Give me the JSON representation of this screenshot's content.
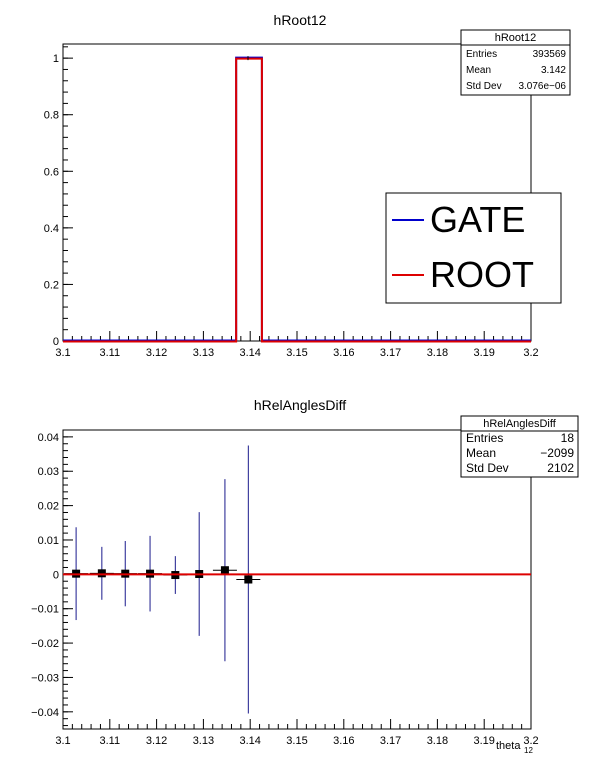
{
  "chart_data": [
    {
      "type": "histogram",
      "title": "hRoot12",
      "xlabel": "",
      "ylabel": "",
      "xlim": [
        3.1,
        3.2
      ],
      "ylim": [
        0,
        1.05
      ],
      "x_ticks": [
        "3.1",
        "3.11",
        "3.12",
        "3.13",
        "3.14",
        "3.15",
        "3.16",
        "3.17",
        "3.18",
        "3.19",
        "3.2"
      ],
      "y_ticks": [
        "0",
        "0.2",
        "0.4",
        "0.6",
        "0.8",
        "1"
      ],
      "series": [
        {
          "name": "GATE",
          "color": "#0000cc",
          "bins": [
            {
              "x0": 3.1,
              "x1": 3.137,
              "y": 0
            },
            {
              "x0": 3.137,
              "x1": 3.1425,
              "y": 1
            },
            {
              "x0": 3.1425,
              "x1": 3.2,
              "y": 0
            }
          ]
        },
        {
          "name": "ROOT",
          "color": "#dd0000",
          "bins": [
            {
              "x0": 3.1,
              "x1": 3.137,
              "y": 0
            },
            {
              "x0": 3.137,
              "x1": 3.1425,
              "y": 1
            },
            {
              "x0": 3.1425,
              "x1": 3.2,
              "y": 0
            }
          ]
        }
      ],
      "legend_placement": "right",
      "stats": {
        "title": "hRoot12",
        "rows": [
          {
            "label": "Entries",
            "value": "393569"
          },
          {
            "label": "Mean",
            "value": "3.142"
          },
          {
            "label": "Std Dev",
            "value": "3.076e−06"
          }
        ]
      }
    },
    {
      "type": "scatter",
      "title": "hRelAnglesDiff",
      "xlabel": "theta",
      "xlabel_sub": "12",
      "ylabel": "",
      "xlim": [
        3.1,
        3.2
      ],
      "ylim": [
        -0.045,
        0.042
      ],
      "x_ticks": [
        "3.1",
        "3.11",
        "3.12",
        "3.13",
        "3.14",
        "3.15",
        "3.16",
        "3.17",
        "3.18",
        "3.19",
        "3.2"
      ],
      "y_ticks": [
        "−0.04",
        "−0.03",
        "−0.02",
        "−0.01",
        "0",
        "0.01",
        "0.02",
        "0.03",
        "0.04"
      ],
      "points": [
        {
          "x": 3.1028,
          "y": 0.0002,
          "yerr": 0.0135
        },
        {
          "x": 3.1083,
          "y": 0.0003,
          "yerr": 0.0077
        },
        {
          "x": 3.1133,
          "y": 0.0002,
          "yerr": 0.0095
        },
        {
          "x": 3.1186,
          "y": 0.0002,
          "yerr": 0.011
        },
        {
          "x": 3.124,
          "y": -0.0002,
          "yerr": 0.0055
        },
        {
          "x": 3.1291,
          "y": 0.0001,
          "yerr": 0.018
        },
        {
          "x": 3.1346,
          "y": 0.0012,
          "yerr": 0.0265
        },
        {
          "x": 3.1396,
          "y": -0.0015,
          "yerr": 0.039
        }
      ],
      "reference_line": {
        "y": 0,
        "color": "#dd0000"
      },
      "stats": {
        "title": "hRelAnglesDiff",
        "rows": [
          {
            "label": "Entries",
            "value": "18"
          },
          {
            "label": "Mean",
            "value": "−2099"
          },
          {
            "label": "Std Dev",
            "value": "2102"
          }
        ]
      }
    }
  ]
}
